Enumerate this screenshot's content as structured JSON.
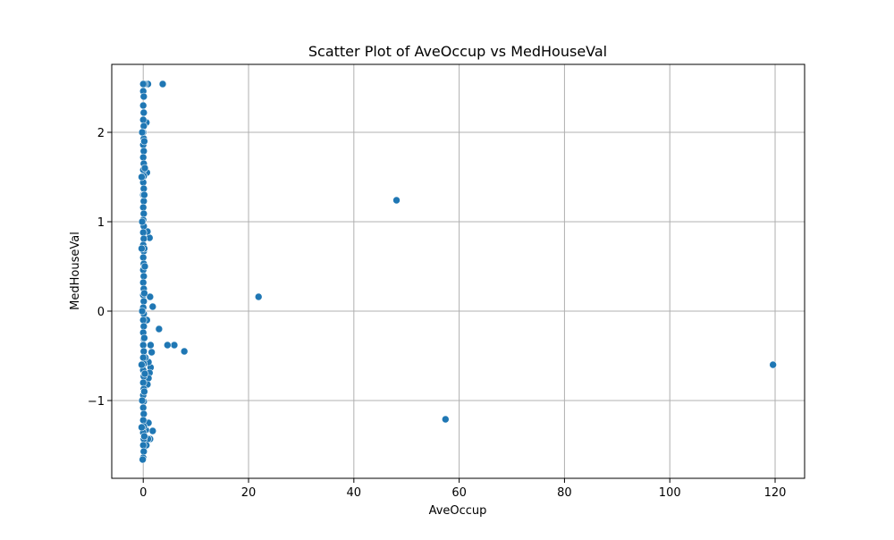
{
  "chart_data": {
    "type": "scatter",
    "title": "Scatter Plot of AveOccup vs MedHouseVal",
    "xlabel": "AveOccup",
    "ylabel": "MedHouseVal",
    "xlim": [
      -5.98,
      125.6
    ],
    "ylim": [
      -1.87,
      2.76
    ],
    "xticks": [
      0,
      20,
      40,
      60,
      80,
      100,
      120
    ],
    "yticks": [
      -1,
      0,
      1,
      2
    ],
    "xtick_labels": [
      "0",
      "20",
      "40",
      "60",
      "80",
      "100",
      "120"
    ],
    "ytick_labels": [
      "−1",
      "0",
      "1",
      "2"
    ],
    "grid": true,
    "marker_color": "#1f77b4",
    "marker_edge_color": "#ffffff",
    "series": [
      {
        "points": [
          [
            119.6,
            -0.6
          ],
          [
            57.4,
            -1.21
          ],
          [
            48.1,
            1.24
          ],
          [
            21.9,
            0.16
          ],
          [
            7.8,
            -0.45
          ],
          [
            5.9,
            -0.38
          ],
          [
            4.6,
            -0.38
          ],
          [
            3.7,
            2.54
          ],
          [
            3.0,
            -0.2
          ],
          [
            1.8,
            0.05
          ],
          [
            1.8,
            -1.34
          ],
          [
            1.6,
            -0.46
          ],
          [
            1.4,
            -0.38
          ],
          [
            1.4,
            -0.63
          ],
          [
            1.3,
            0.16
          ],
          [
            1.2,
            0.82
          ],
          [
            1.2,
            -0.69
          ],
          [
            1.0,
            -0.57
          ],
          [
            1.0,
            -0.75
          ],
          [
            1.0,
            -1.25
          ],
          [
            1.3,
            -1.43
          ],
          [
            0.9,
            -1.43
          ],
          [
            0.8,
            -0.82
          ],
          [
            0.9,
            2.54
          ],
          [
            0.8,
            0.89
          ],
          [
            0.7,
            -0.1
          ],
          [
            0.6,
            2.11
          ],
          [
            0.7,
            1.55
          ],
          [
            0.5,
            -1.33
          ],
          [
            0.6,
            -1.5
          ],
          [
            0.3,
            2.54
          ],
          [
            0.4,
            -0.52
          ],
          [
            0.0,
            2.54
          ],
          [
            0.0,
            2.46
          ],
          [
            0.1,
            2.4
          ],
          [
            0.0,
            2.3
          ],
          [
            0.1,
            2.22
          ],
          [
            0.0,
            2.14
          ],
          [
            0.1,
            2.07
          ],
          [
            0.0,
            2.0
          ],
          [
            0.1,
            1.93
          ],
          [
            0.0,
            1.86
          ],
          [
            0.1,
            1.79
          ],
          [
            0.0,
            1.72
          ],
          [
            0.1,
            1.65
          ],
          [
            0.0,
            1.58
          ],
          [
            0.1,
            1.51
          ],
          [
            0.0,
            1.44
          ],
          [
            0.1,
            1.37
          ],
          [
            0.0,
            1.3
          ],
          [
            0.1,
            1.23
          ],
          [
            0.0,
            1.16
          ],
          [
            0.1,
            1.09
          ],
          [
            0.0,
            1.02
          ],
          [
            0.1,
            0.95
          ],
          [
            0.0,
            0.88
          ],
          [
            0.1,
            0.81
          ],
          [
            0.0,
            0.74
          ],
          [
            0.1,
            0.67
          ],
          [
            0.0,
            0.6
          ],
          [
            0.1,
            0.53
          ],
          [
            0.0,
            0.46
          ],
          [
            0.1,
            0.39
          ],
          [
            0.0,
            0.32
          ],
          [
            0.1,
            0.25
          ],
          [
            0.0,
            0.18
          ],
          [
            0.1,
            0.11
          ],
          [
            0.0,
            0.04
          ],
          [
            0.1,
            -0.03
          ],
          [
            0.0,
            -0.1
          ],
          [
            0.1,
            -0.17
          ],
          [
            0.0,
            -0.24
          ],
          [
            0.1,
            -0.31
          ],
          [
            0.0,
            -0.38
          ],
          [
            0.1,
            -0.45
          ],
          [
            0.0,
            -0.52
          ],
          [
            0.1,
            -0.59
          ],
          [
            0.0,
            -0.66
          ],
          [
            0.1,
            -0.73
          ],
          [
            0.0,
            -0.8
          ],
          [
            0.1,
            -0.87
          ],
          [
            0.0,
            -0.94
          ],
          [
            0.1,
            -1.01
          ],
          [
            0.0,
            -1.08
          ],
          [
            0.1,
            -1.15
          ],
          [
            0.0,
            -1.22
          ],
          [
            0.1,
            -1.29
          ],
          [
            0.0,
            -1.36
          ],
          [
            0.1,
            -1.43
          ],
          [
            0.0,
            -1.5
          ],
          [
            0.1,
            -1.57
          ],
          [
            0.0,
            -1.64
          ],
          [
            -0.1,
            -1.66
          ],
          [
            0.2,
            1.9
          ],
          [
            0.2,
            1.3
          ],
          [
            0.2,
            0.7
          ],
          [
            0.2,
            0.2
          ],
          [
            0.2,
            -0.3
          ],
          [
            0.2,
            -0.9
          ],
          [
            0.2,
            -1.4
          ],
          [
            0.3,
            1.6
          ],
          [
            0.3,
            0.5
          ],
          [
            0.3,
            -0.7
          ],
          [
            -0.2,
            2.0
          ],
          [
            -0.2,
            1.0
          ],
          [
            -0.2,
            0.0
          ],
          [
            -0.2,
            -1.0
          ],
          [
            -0.3,
            0.7
          ],
          [
            -0.3,
            -0.6
          ],
          [
            -0.3,
            1.5
          ],
          [
            -0.3,
            -1.3
          ]
        ]
      }
    ]
  }
}
